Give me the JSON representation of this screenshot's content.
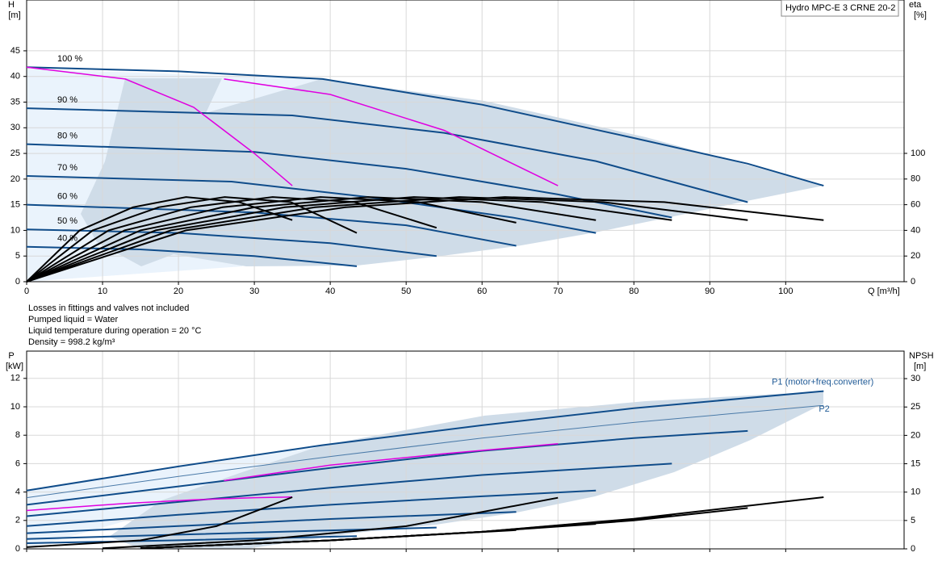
{
  "header": {
    "title": "Hydro MPC-E 3 CRNE 20-2"
  },
  "notes": [
    "Losses in fittings and valves not included",
    "Pumped liquid = Water",
    "Liquid temperature during operation = 20 °C",
    "Density = 998.2 kg/m³"
  ],
  "chart_data": [
    {
      "type": "line",
      "x_label": "Q [m³/h]",
      "y_label": "H",
      "y_unit": "[m]",
      "y2_label": "eta",
      "y2_unit": "[%]",
      "xlim": [
        0,
        115.6
      ],
      "xticks": [
        0,
        10,
        20,
        30,
        40,
        50,
        60,
        70,
        80,
        90,
        100
      ],
      "ylim": [
        0,
        54.9
      ],
      "yticks": [
        0,
        5,
        10,
        15,
        20,
        25,
        30,
        35,
        40,
        45
      ],
      "y2lim": [
        0,
        219.5
      ],
      "y2ticks": [
        0,
        20,
        40,
        60,
        80,
        100
      ],
      "grid": true,
      "series": [
        {
          "name": "100 %",
          "color": "#0f4c8a",
          "x": [
            0,
            20,
            39,
            60,
            80,
            95,
            105
          ],
          "values": [
            41.8,
            41,
            39.5,
            34.5,
            28,
            23,
            18.7
          ]
        },
        {
          "name": "90 %",
          "color": "#0f4c8a",
          "x": [
            0,
            35,
            55,
            75,
            95
          ],
          "values": [
            33.8,
            32.4,
            29,
            23.5,
            15.5
          ]
        },
        {
          "name": "80 %",
          "color": "#0f4c8a",
          "x": [
            0,
            30,
            50,
            70,
            85
          ],
          "values": [
            26.8,
            25.3,
            22,
            17,
            12.5
          ]
        },
        {
          "name": "70 %",
          "color": "#0f4c8a",
          "x": [
            0,
            27,
            45,
            64,
            75
          ],
          "values": [
            20.6,
            19.5,
            16.5,
            12.5,
            9.5
          ]
        },
        {
          "name": "60 %",
          "color": "#0f4c8a",
          "x": [
            0,
            30,
            50,
            64.5
          ],
          "values": [
            15,
            13.5,
            11,
            7
          ]
        },
        {
          "name": "50 %",
          "color": "#0f4c8a",
          "x": [
            0,
            20,
            40,
            54
          ],
          "values": [
            10.2,
            9.5,
            7.5,
            5
          ]
        },
        {
          "name": "40 %",
          "color": "#0f4c8a",
          "x": [
            0,
            15,
            30,
            43.5
          ],
          "values": [
            6.8,
            6.3,
            5,
            3
          ]
        },
        {
          "color": "#000000",
          "axis": "y2",
          "x": [
            0,
            7,
            14,
            21,
            28,
            35
          ],
          "values": [
            0,
            40,
            58,
            66,
            62,
            48
          ]
        },
        {
          "color": "#000000",
          "axis": "y2",
          "x": [
            0,
            8.7,
            17.4,
            26.1,
            34.8,
            43.5
          ],
          "values": [
            0,
            40,
            58,
            66,
            62,
            38
          ]
        },
        {
          "color": "#000000",
          "axis": "y2",
          "x": [
            0,
            10.8,
            21.6,
            32.4,
            43.2,
            54
          ],
          "values": [
            0,
            40,
            58,
            66,
            62,
            42
          ]
        },
        {
          "color": "#000000",
          "axis": "y2",
          "x": [
            0,
            12.9,
            25.8,
            38.7,
            51.6,
            64.5
          ],
          "values": [
            0,
            40,
            58,
            66,
            62,
            46
          ]
        },
        {
          "color": "#000000",
          "axis": "y2",
          "x": [
            0,
            15,
            30,
            45,
            60,
            75
          ],
          "values": [
            0,
            40,
            58,
            66,
            62,
            48
          ]
        },
        {
          "color": "#000000",
          "axis": "y2",
          "x": [
            0,
            17,
            34,
            51,
            68,
            85
          ],
          "values": [
            0,
            40,
            58,
            66,
            62,
            48
          ]
        },
        {
          "color": "#000000",
          "axis": "y2",
          "x": [
            0,
            19,
            38,
            57,
            76,
            95
          ],
          "values": [
            0,
            40,
            58,
            66,
            62,
            48
          ]
        },
        {
          "color": "#000000",
          "axis": "y2",
          "x": [
            0,
            21,
            42,
            63,
            84,
            105
          ],
          "values": [
            0,
            40,
            58,
            66,
            62,
            48
          ]
        },
        {
          "color": "#e000e0",
          "x": [
            0,
            13,
            22,
            30,
            35
          ],
          "values": [
            41.8,
            39.5,
            34,
            25,
            18.7
          ]
        },
        {
          "color": "#e000e0",
          "x": [
            26,
            40,
            55,
            70
          ],
          "values": [
            39.5,
            36.5,
            29.5,
            18.7
          ]
        }
      ]
    },
    {
      "type": "line",
      "y_label": "P",
      "y_unit": "[kW]",
      "y2_label": "NPSH",
      "y2_unit": "[m]",
      "xlim": [
        0,
        115.6
      ],
      "xticks": [
        0,
        10,
        20,
        30,
        40,
        50,
        60,
        70,
        80,
        90,
        100
      ],
      "ylim": [
        0,
        13.92
      ],
      "yticks": [
        0,
        2,
        4,
        6,
        8,
        10,
        12
      ],
      "y2lim": [
        0,
        34.85
      ],
      "y2ticks": [
        0,
        5,
        10,
        15,
        20,
        25,
        30
      ],
      "grid": true,
      "series": [
        {
          "name": "P1 (motor+freq.converter)",
          "color": "#0f4c8a",
          "x": [
            0,
            20,
            39,
            60,
            80,
            105
          ],
          "values": [
            4.1,
            5.8,
            7.3,
            8.7,
            9.9,
            11.1
          ]
        },
        {
          "name": "P2",
          "color": "#4a7aa8",
          "x": [
            0,
            20,
            40,
            60,
            80,
            105
          ],
          "values": [
            3.6,
            5.1,
            6.5,
            7.8,
            8.9,
            10.1
          ]
        },
        {
          "color": "#0f4c8a",
          "x": [
            0,
            20,
            40,
            60,
            80,
            95
          ],
          "values": [
            3.1,
            4.4,
            5.7,
            6.9,
            7.8,
            8.3
          ]
        },
        {
          "color": "#0f4c8a",
          "x": [
            0,
            20,
            40,
            60,
            85
          ],
          "values": [
            2.3,
            3.3,
            4.3,
            5.2,
            6
          ]
        },
        {
          "color": "#0f4c8a",
          "x": [
            0,
            20,
            40,
            60,
            75
          ],
          "values": [
            1.6,
            2.4,
            3.1,
            3.7,
            4.1
          ]
        },
        {
          "color": "#0f4c8a",
          "x": [
            0,
            20,
            40,
            64.5
          ],
          "values": [
            1.1,
            1.6,
            2.1,
            2.6
          ]
        },
        {
          "color": "#0f4c8a",
          "x": [
            0,
            20,
            40,
            54
          ],
          "values": [
            0.7,
            1,
            1.3,
            1.5
          ]
        },
        {
          "color": "#0f4c8a",
          "x": [
            0,
            20,
            43.5
          ],
          "values": [
            0.4,
            0.6,
            0.9
          ]
        },
        {
          "color": "#e000e0",
          "x": [
            0,
            13,
            22,
            30,
            35
          ],
          "values": [
            2.7,
            3.2,
            3.45,
            3.6,
            3.65
          ]
        },
        {
          "color": "#e000e0",
          "x": [
            26,
            40,
            55,
            70
          ],
          "values": [
            4.8,
            5.9,
            6.7,
            7.4
          ]
        },
        {
          "color": "#000000",
          "axis": "y2",
          "x": [
            15,
            40,
            60,
            80,
            105
          ],
          "values": [
            0.1,
            1.5,
            3,
            5.3,
            9.1
          ]
        },
        {
          "color": "#000000",
          "axis": "y2",
          "x": [
            15,
            40,
            60,
            80,
            95
          ],
          "values": [
            0.1,
            1.5,
            3,
            5,
            7.2
          ]
        },
        {
          "color": "#000000",
          "axis": "y2",
          "x": [
            15,
            40,
            60,
            85
          ],
          "values": [
            0.1,
            1.5,
            3,
            5.8
          ]
        },
        {
          "color": "#000000",
          "axis": "y2",
          "x": [
            15,
            40,
            60,
            75
          ],
          "values": [
            0.1,
            1.5,
            3,
            4.4
          ]
        },
        {
          "color": "#000000",
          "axis": "y2",
          "x": [
            15,
            40,
            64.5
          ],
          "values": [
            0.1,
            1.5,
            3.3
          ]
        },
        {
          "color": "#000000",
          "axis": "y2",
          "x": [
            10,
            30,
            50,
            70
          ],
          "values": [
            0.1,
            1.5,
            4,
            9
          ]
        },
        {
          "color": "#000000",
          "axis": "y2",
          "x": [
            0,
            15,
            25,
            35
          ],
          "values": [
            0.3,
            1.5,
            4,
            9.1
          ]
        }
      ]
    }
  ]
}
